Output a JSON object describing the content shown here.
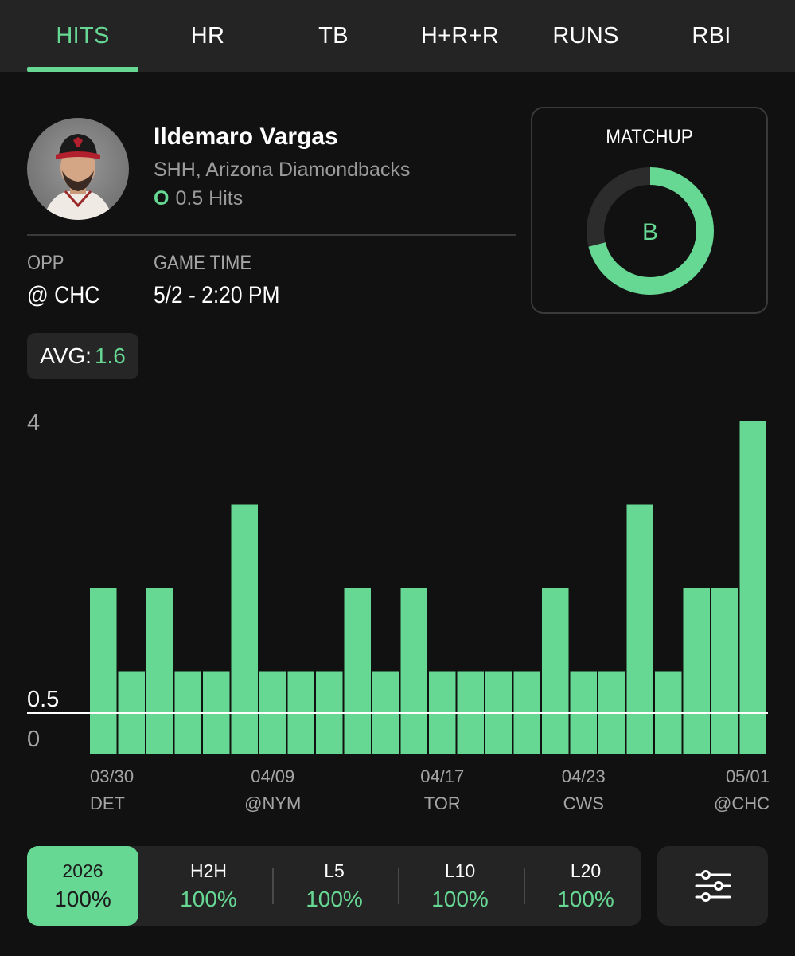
{
  "tabs": [
    {
      "label": "HITS",
      "active": true
    },
    {
      "label": "HR",
      "active": false
    },
    {
      "label": "TB",
      "active": false
    },
    {
      "label": "H+R+R",
      "active": false
    },
    {
      "label": "RUNS",
      "active": false
    },
    {
      "label": "RBI",
      "active": false
    }
  ],
  "player": {
    "name": "Ildemaro Vargas",
    "team": "SHH, Arizona Diamondbacks",
    "prop_side": "O",
    "prop_line": "0.5 Hits"
  },
  "info": {
    "opp_label": "OPP",
    "opp_value": "@ CHC",
    "game_time_label": "GAME TIME",
    "game_time_value": "5/2 - 2:20 PM"
  },
  "matchup": {
    "title": "MATCHUP",
    "grade": "B",
    "fill_fraction": 0.71
  },
  "avg": {
    "label": "AVG:",
    "value": "1.6"
  },
  "chart_data": {
    "type": "bar",
    "ylim": [
      0,
      4
    ],
    "y_tick_labels": [
      "4",
      "0"
    ],
    "reference_line": {
      "value": 0.5,
      "label": "0.5"
    },
    "values": [
      2,
      1,
      2,
      1,
      1,
      3,
      1,
      1,
      1,
      2,
      1,
      2,
      1,
      1,
      1,
      1,
      2,
      1,
      1,
      3,
      1,
      2,
      2,
      4
    ],
    "x_labels": [
      {
        "index": 0,
        "date": "03/30",
        "opp": "DET"
      },
      {
        "index": 6,
        "date": "04/09",
        "opp": "@NYM"
      },
      {
        "index": 12,
        "date": "04/17",
        "opp": "TOR"
      },
      {
        "index": 17,
        "date": "04/23",
        "opp": "CWS"
      },
      {
        "index": 23,
        "date": "05/01",
        "opp": "@CHC"
      }
    ],
    "bar_color": "#67d894"
  },
  "filters": [
    {
      "label": "2026",
      "value": "100%",
      "active": true
    },
    {
      "label": "H2H",
      "value": "100%",
      "active": false
    },
    {
      "label": "L5",
      "value": "100%",
      "active": false
    },
    {
      "label": "L10",
      "value": "100%",
      "active": false
    },
    {
      "label": "L20",
      "value": "100%",
      "active": false
    }
  ],
  "colors": {
    "accent": "#67d894",
    "background": "#111111",
    "surface": "#242424",
    "muted_text": "#9b9b9b"
  },
  "icons": {
    "settings": "sliders-icon",
    "avatar": "player-avatar"
  }
}
